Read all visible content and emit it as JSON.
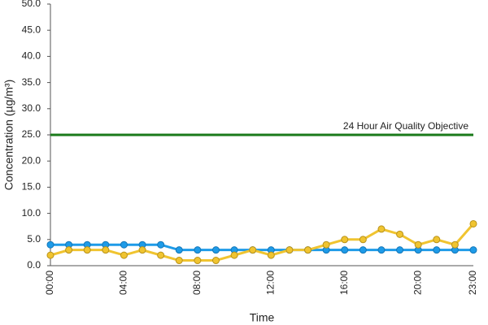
{
  "chart_data": {
    "type": "line",
    "y_label": "Concentration (µg/m³)",
    "x_label": "Time",
    "categories": [
      "00:00",
      null,
      null,
      null,
      "04:00",
      null,
      null,
      null,
      "08:00",
      null,
      null,
      null,
      "12:00",
      null,
      null,
      null,
      "16:00",
      null,
      null,
      null,
      "20:00",
      null,
      null,
      "23:00"
    ],
    "series": [
      {
        "color": "#1e9be8",
        "values": [
          4,
          4,
          4,
          4,
          4,
          4,
          4,
          3,
          3,
          3,
          3,
          3,
          3,
          3,
          3,
          3,
          3,
          3,
          3,
          3,
          3,
          3,
          3,
          3
        ]
      },
      {
        "color": "#f0c430",
        "values": [
          2,
          3,
          3,
          3,
          2,
          3,
          2,
          1,
          1,
          1,
          2,
          3,
          2,
          3,
          3,
          4,
          5,
          5,
          7,
          6,
          4,
          5,
          4,
          8
        ]
      }
    ],
    "reference_line": {
      "value": 25,
      "label": "24 Hour Air Quality Objective",
      "color": "#1a7a1a"
    },
    "ylim": [
      0,
      50
    ],
    "yticks": [
      {
        "value": 0,
        "label": "0.0"
      },
      {
        "value": 5,
        "label": "5.0"
      },
      {
        "value": 10,
        "label": "10.0"
      },
      {
        "value": 15,
        "label": "15.0"
      },
      {
        "value": 20,
        "label": "20.0"
      },
      {
        "value": 25,
        "label": "25.0"
      },
      {
        "value": 30,
        "label": "30.0"
      },
      {
        "value": 35,
        "label": "35.0"
      },
      {
        "value": 40,
        "label": "40.0"
      },
      {
        "value": 45,
        "label": "45.0"
      },
      {
        "value": 50,
        "label": "50.0"
      }
    ]
  }
}
